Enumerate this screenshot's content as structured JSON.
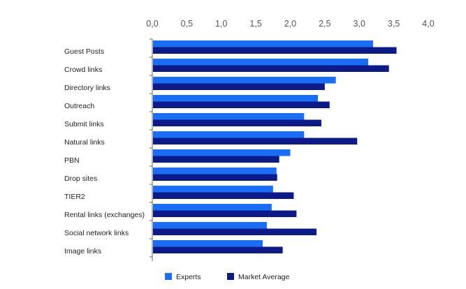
{
  "chart_data": {
    "type": "bar",
    "orientation": "horizontal",
    "categories": [
      "Guest Posts",
      "Crowd links",
      "Directory links",
      "Outreach",
      "Submit links",
      "Natural links",
      "PBN",
      "Drop sites",
      "TIER2",
      "Rental links (exchanges)",
      "Social network links",
      "Image links"
    ],
    "series": [
      {
        "name": "Experts",
        "color": "#1a6ef5",
        "values": [
          3.2,
          3.13,
          2.66,
          2.4,
          2.2,
          2.2,
          2.0,
          1.8,
          1.75,
          1.73,
          1.66,
          1.6
        ]
      },
      {
        "name": "Market Average",
        "color": "#0d1a8a",
        "values": [
          3.54,
          3.43,
          2.5,
          2.57,
          2.45,
          2.97,
          1.84,
          1.81,
          2.05,
          2.09,
          2.38,
          1.89
        ]
      }
    ],
    "xlim": [
      0,
      4
    ],
    "ticks": [
      "0,0",
      "0,5",
      "1,0",
      "1,5",
      "2,0",
      "2,5",
      "3,0",
      "3,5",
      "4,0"
    ],
    "tick_values": [
      0,
      0.5,
      1.0,
      1.5,
      2.0,
      2.5,
      3.0,
      3.5,
      4.0
    ],
    "axis_position": "top",
    "grid": false,
    "legend_position": "bottom"
  }
}
